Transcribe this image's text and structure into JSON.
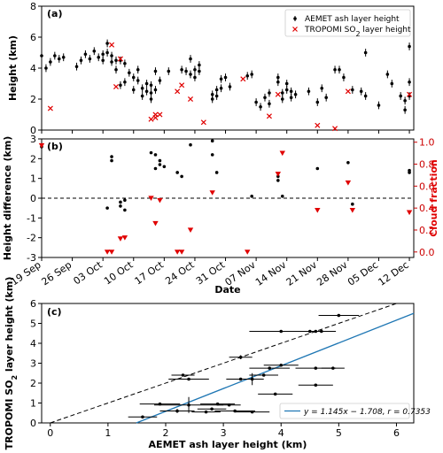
{
  "chart_data": [
    {
      "panel": "(a)",
      "type": "scatter",
      "ylabel": "Height (km)",
      "xlim": [
        "2021-09-19",
        "2021-12-13"
      ],
      "ylim": [
        0,
        8
      ],
      "yticks": [
        0,
        2,
        4,
        6,
        8
      ],
      "legend_position": "top-right",
      "series": [
        {
          "name": "AEMET ash layer height",
          "marker": "point-with-error-bar",
          "color": "#000000",
          "points": [
            [
              "2021-09-19",
              4.8
            ],
            [
              "2021-09-20",
              4.0
            ],
            [
              "2021-09-21",
              4.4
            ],
            [
              "2021-09-22",
              4.8
            ],
            [
              "2021-09-23",
              4.6
            ],
            [
              "2021-09-24",
              4.7
            ],
            [
              "2021-09-27",
              4.1
            ],
            [
              "2021-09-28",
              4.5
            ],
            [
              "2021-09-29",
              4.9
            ],
            [
              "2021-09-30",
              4.6
            ],
            [
              "2021-10-01",
              5.1
            ],
            [
              "2021-10-02",
              4.7
            ],
            [
              "2021-10-03",
              4.9
            ],
            [
              "2021-10-03",
              4.5
            ],
            [
              "2021-10-04",
              5.6
            ],
            [
              "2021-10-04",
              5.0
            ],
            [
              "2021-10-05",
              4.4
            ],
            [
              "2021-10-05",
              4.8
            ],
            [
              "2021-10-06",
              4.5
            ],
            [
              "2021-10-06",
              3.9
            ],
            [
              "2021-10-07",
              4.5
            ],
            [
              "2021-10-07",
              2.9
            ],
            [
              "2021-10-08",
              4.3
            ],
            [
              "2021-10-08",
              3.1
            ],
            [
              "2021-10-09",
              3.7
            ],
            [
              "2021-10-10",
              3.4
            ],
            [
              "2021-10-10",
              2.6
            ],
            [
              "2021-10-11",
              3.9
            ],
            [
              "2021-10-11",
              3.2
            ],
            [
              "2021-10-12",
              2.7
            ],
            [
              "2021-10-12",
              2.2
            ],
            [
              "2021-10-13",
              3.0
            ],
            [
              "2021-10-13",
              2.5
            ],
            [
              "2021-10-14",
              2.9
            ],
            [
              "2021-10-14",
              2.4
            ],
            [
              "2021-10-14",
              2.0
            ],
            [
              "2021-10-15",
              3.8
            ],
            [
              "2021-10-15",
              2.6
            ],
            [
              "2021-10-16",
              3.2
            ],
            [
              "2021-10-18",
              3.8
            ],
            [
              "2021-10-21",
              3.9
            ],
            [
              "2021-10-22",
              3.8
            ],
            [
              "2021-10-23",
              4.6
            ],
            [
              "2021-10-23",
              3.6
            ],
            [
              "2021-10-24",
              3.9
            ],
            [
              "2021-10-24",
              3.4
            ],
            [
              "2021-10-25",
              4.2
            ],
            [
              "2021-10-25",
              3.8
            ],
            [
              "2021-10-28",
              2.3
            ],
            [
              "2021-10-28",
              2.0
            ],
            [
              "2021-10-29",
              2.6
            ],
            [
              "2021-10-29",
              2.2
            ],
            [
              "2021-10-30",
              3.3
            ],
            [
              "2021-10-30",
              2.7
            ],
            [
              "2021-10-31",
              3.4
            ],
            [
              "2021-11-01",
              2.8
            ],
            [
              "2021-11-05",
              3.5
            ],
            [
              "2021-11-06",
              3.6
            ],
            [
              "2021-11-07",
              1.8
            ],
            [
              "2021-11-08",
              1.5
            ],
            [
              "2021-11-09",
              2.1
            ],
            [
              "2021-11-10",
              2.4
            ],
            [
              "2021-11-10",
              1.7
            ],
            [
              "2021-11-12",
              3.4
            ],
            [
              "2021-11-12",
              3.1
            ],
            [
              "2021-11-13",
              2.4
            ],
            [
              "2021-11-13",
              2.0
            ],
            [
              "2021-11-14",
              3.0
            ],
            [
              "2021-11-14",
              2.6
            ],
            [
              "2021-11-15",
              2.5
            ],
            [
              "2021-11-15",
              2.1
            ],
            [
              "2021-11-16",
              2.3
            ],
            [
              "2021-11-19",
              2.5
            ],
            [
              "2021-11-21",
              1.8
            ],
            [
              "2021-11-22",
              2.7
            ],
            [
              "2021-11-23",
              2.1
            ],
            [
              "2021-11-25",
              3.9
            ],
            [
              "2021-11-26",
              3.9
            ],
            [
              "2021-11-27",
              3.4
            ],
            [
              "2021-11-29",
              2.6
            ],
            [
              "2021-12-01",
              2.5
            ],
            [
              "2021-12-02",
              5.0
            ],
            [
              "2021-12-02",
              2.2
            ],
            [
              "2021-12-05",
              1.6
            ],
            [
              "2021-12-07",
              3.6
            ],
            [
              "2021-12-08",
              3.0
            ],
            [
              "2021-12-10",
              2.2
            ],
            [
              "2021-12-11",
              1.9
            ],
            [
              "2021-12-11",
              1.3
            ],
            [
              "2021-12-12",
              5.4
            ],
            [
              "2021-12-12",
              3.1
            ],
            [
              "2021-12-12",
              2.2
            ]
          ]
        },
        {
          "name": "TROPOMI SO2 layer height",
          "legend_label_parts": [
            "TROPOMI SO",
            "2",
            " layer height"
          ],
          "marker": "x",
          "color": "#e00000",
          "points": [
            [
              "2021-09-21",
              1.4
            ],
            [
              "2021-10-05",
              5.5
            ],
            [
              "2021-10-06",
              2.8
            ],
            [
              "2021-10-07",
              4.6
            ],
            [
              "2021-10-14",
              0.7
            ],
            [
              "2021-10-15",
              1.0
            ],
            [
              "2021-10-15",
              0.8
            ],
            [
              "2021-10-16",
              1.0
            ],
            [
              "2021-10-20",
              2.5
            ],
            [
              "2021-10-21",
              2.9
            ],
            [
              "2021-10-23",
              2.0
            ],
            [
              "2021-10-26",
              0.5
            ],
            [
              "2021-11-04",
              3.3
            ],
            [
              "2021-11-10",
              0.9
            ],
            [
              "2021-11-12",
              2.3
            ],
            [
              "2021-11-21",
              0.3
            ],
            [
              "2021-11-25",
              0.1
            ],
            [
              "2021-11-28",
              2.5
            ],
            [
              "2021-12-12",
              2.3
            ]
          ]
        }
      ]
    },
    {
      "panel": "(b)",
      "type": "scatter",
      "xlabel": "Date",
      "ylabel": "Height difference (km)",
      "ylabel_right": "Cloud fraction",
      "xlim": [
        "2021-09-19",
        "2021-12-13"
      ],
      "ylim": [
        -3,
        3
      ],
      "yticks": [
        -3,
        -2,
        -1,
        0,
        1,
        2,
        3
      ],
      "ylim_right": [
        -0.05,
        1.03
      ],
      "yticks_right": [
        0.0,
        0.2,
        0.4,
        0.6,
        0.8,
        1.0
      ],
      "xtick_dates": [
        "2021-09-19",
        "2021-09-26",
        "2021-10-03",
        "2021-10-10",
        "2021-10-17",
        "2021-10-24",
        "2021-10-31",
        "2021-11-07",
        "2021-11-14",
        "2021-11-21",
        "2021-11-28",
        "2021-12-05",
        "2021-12-12"
      ],
      "xtick_labels": [
        "19 Sep",
        "26 Sep",
        "03 Oct",
        "10 Oct",
        "17 Oct",
        "24 Oct",
        "31 Oct",
        "07 Nov",
        "14 Nov",
        "21 Nov",
        "28 Nov",
        "05 Dec",
        "12 Dec"
      ],
      "reference_line": {
        "y": 0,
        "style": "dashed"
      },
      "series": [
        {
          "role": "height difference",
          "marker": "dot",
          "color": "#000000",
          "axis": "left",
          "points": [
            [
              "2021-09-19",
              2.6
            ],
            [
              "2021-10-04",
              -0.5
            ],
            [
              "2021-10-05",
              2.1
            ],
            [
              "2021-10-05",
              1.9
            ],
            [
              "2021-10-07",
              -0.2
            ],
            [
              "2021-10-07",
              -0.4
            ],
            [
              "2021-10-08",
              -0.6
            ],
            [
              "2021-10-08",
              -0.1
            ],
            [
              "2021-10-14",
              2.3
            ],
            [
              "2021-10-15",
              2.2
            ],
            [
              "2021-10-15",
              1.5
            ],
            [
              "2021-10-16",
              1.9
            ],
            [
              "2021-10-16",
              1.7
            ],
            [
              "2021-10-17",
              1.6
            ],
            [
              "2021-10-20",
              1.3
            ],
            [
              "2021-10-21",
              1.1
            ],
            [
              "2021-10-23",
              2.7
            ],
            [
              "2021-10-28",
              2.9
            ],
            [
              "2021-10-28",
              2.2
            ],
            [
              "2021-10-29",
              1.3
            ],
            [
              "2021-11-06",
              0.1
            ],
            [
              "2021-11-12",
              1.1
            ],
            [
              "2021-11-12",
              0.9
            ],
            [
              "2021-11-13",
              0.1
            ],
            [
              "2021-11-21",
              1.5
            ],
            [
              "2021-11-28",
              1.8
            ],
            [
              "2021-11-29",
              -0.3
            ],
            [
              "2021-12-12",
              1.3
            ],
            [
              "2021-12-12",
              1.4
            ]
          ]
        },
        {
          "role": "cloud fraction",
          "marker": "triangle-down",
          "color": "#e00000",
          "axis": "right",
          "points": [
            [
              "2021-09-19",
              0.97
            ],
            [
              "2021-10-04",
              0.0
            ],
            [
              "2021-10-05",
              0.0
            ],
            [
              "2021-10-07",
              0.12
            ],
            [
              "2021-10-08",
              0.13
            ],
            [
              "2021-10-14",
              0.49
            ],
            [
              "2021-10-15",
              0.26
            ],
            [
              "2021-10-16",
              0.47
            ],
            [
              "2021-10-20",
              0.0
            ],
            [
              "2021-10-21",
              0.0
            ],
            [
              "2021-10-23",
              0.2
            ],
            [
              "2021-10-28",
              0.54
            ],
            [
              "2021-11-05",
              0.0
            ],
            [
              "2021-11-12",
              0.71
            ],
            [
              "2021-11-13",
              0.9
            ],
            [
              "2021-11-21",
              0.38
            ],
            [
              "2021-11-28",
              0.63
            ],
            [
              "2021-11-29",
              0.38
            ],
            [
              "2021-12-12",
              0.36
            ]
          ]
        }
      ]
    },
    {
      "panel": "(c)",
      "type": "scatter",
      "xlabel": "AEMET ash layer height (km)",
      "ylabel": "TROPOMI SO2 layer height (km)",
      "ylabel_parts": [
        "TROPOMI SO",
        "2",
        " layer height (km)"
      ],
      "xlim": [
        -0.15,
        6.3
      ],
      "ylim": [
        0,
        6
      ],
      "xticks": [
        0,
        1,
        2,
        3,
        4,
        5,
        6
      ],
      "yticks": [
        0,
        1,
        2,
        3,
        4,
        5,
        6
      ],
      "legend_position": "bottom-right",
      "one_to_one_line": {
        "style": "dashed",
        "color": "#000000"
      },
      "fit": {
        "slope": 1.145,
        "intercept": -1.708,
        "r": 0.7353,
        "color": "#1f77b4",
        "label": "y = 1.145x − 1.708, r = 0.7353"
      },
      "points": [
        {
          "x": 1.6,
          "y": 0.3,
          "xerr": 0.25,
          "yerr": 0.0
        },
        {
          "x": 1.9,
          "y": 0.95,
          "xerr": 0.35,
          "yerr": 0.0
        },
        {
          "x": 2.2,
          "y": 0.6,
          "xerr": 0.3,
          "yerr": 0.1
        },
        {
          "x": 2.3,
          "y": 2.4,
          "xerr": 0.2,
          "yerr": 0.0
        },
        {
          "x": 2.4,
          "y": 2.2,
          "xerr": 0.35,
          "yerr": 0.0
        },
        {
          "x": 2.4,
          "y": 0.9,
          "xerr": 0.6,
          "yerr": 0.4
        },
        {
          "x": 2.7,
          "y": 0.55,
          "xerr": 0.25,
          "yerr": 0.0
        },
        {
          "x": 2.8,
          "y": 0.7,
          "xerr": 0.25,
          "yerr": 0.0
        },
        {
          "x": 2.9,
          "y": 0.95,
          "xerr": 0.3,
          "yerr": 0.0
        },
        {
          "x": 3.1,
          "y": 0.9,
          "xerr": 0.2,
          "yerr": 0.0
        },
        {
          "x": 3.2,
          "y": 0.6,
          "xerr": 0.35,
          "yerr": 0.0
        },
        {
          "x": 3.3,
          "y": 3.3,
          "xerr": 0.2,
          "yerr": 0.1
        },
        {
          "x": 3.3,
          "y": 2.2,
          "xerr": 0.25,
          "yerr": 0.0
        },
        {
          "x": 3.5,
          "y": 0.55,
          "xerr": 0.3,
          "yerr": 0.0
        },
        {
          "x": 3.5,
          "y": 2.2,
          "xerr": 0.2,
          "yerr": 0.3
        },
        {
          "x": 3.7,
          "y": 2.4,
          "xerr": 0.25,
          "yerr": 0.0
        },
        {
          "x": 3.8,
          "y": 2.75,
          "xerr": 0.35,
          "yerr": 0.0
        },
        {
          "x": 3.9,
          "y": 1.45,
          "xerr": 0.3,
          "yerr": 0.0
        },
        {
          "x": 4.0,
          "y": 2.9,
          "xerr": 0.3,
          "yerr": 0.0
        },
        {
          "x": 4.0,
          "y": 4.6,
          "xerr": 0.55,
          "yerr": 0.0
        },
        {
          "x": 4.5,
          "y": 4.6,
          "xerr": 0.45,
          "yerr": 0.0
        },
        {
          "x": 4.6,
          "y": 4.6,
          "xerr": 0.15,
          "yerr": 0.0
        },
        {
          "x": 4.6,
          "y": 1.9,
          "xerr": 0.3,
          "yerr": 0.0
        },
        {
          "x": 4.6,
          "y": 2.75,
          "xerr": 0.35,
          "yerr": 0.0
        },
        {
          "x": 4.7,
          "y": 4.6,
          "xerr": 0.2,
          "yerr": 0.0
        },
        {
          "x": 4.9,
          "y": 2.75,
          "xerr": 0.2,
          "yerr": 0.0
        },
        {
          "x": 5.0,
          "y": 5.4,
          "xerr": 0.35,
          "yerr": 0.0
        }
      ]
    }
  ]
}
